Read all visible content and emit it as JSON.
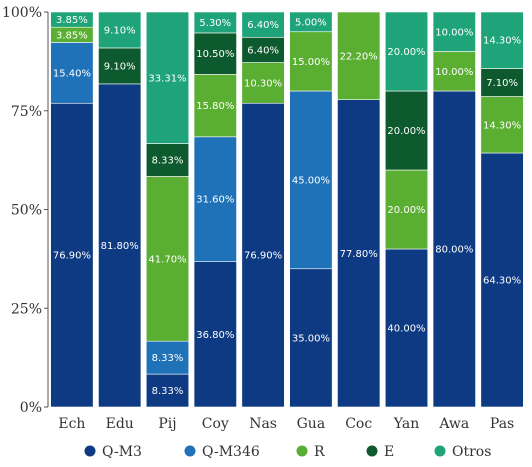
{
  "chart_data": {
    "type": "bar",
    "stacked": true,
    "categories": [
      "Ech",
      "Edu",
      "Pij",
      "Coy",
      "Nas",
      "Gua",
      "Coc",
      "Yan",
      "Awa",
      "Pas"
    ],
    "ylim": [
      0,
      100
    ],
    "yticks": [
      "0%",
      "25%",
      "50%",
      "75%",
      "100%"
    ],
    "ytick_values": [
      0,
      25,
      50,
      75,
      100
    ],
    "grid": false,
    "legend_position": "bottom",
    "series": [
      {
        "name": "Q-M3",
        "color": "#0d3a82",
        "values": [
          76.9,
          81.8,
          8.33,
          36.8,
          76.9,
          35.0,
          77.8,
          40.0,
          80.0,
          64.3
        ],
        "labels": [
          "76.90%",
          "81.80%",
          "8.33%",
          "36.80%",
          "76.90%",
          "35.00%",
          "77.80%",
          "40.00%",
          "80.00%",
          "64.30%"
        ]
      },
      {
        "name": "Q-M346",
        "color": "#1f72b8",
        "values": [
          15.4,
          0,
          8.33,
          31.6,
          0,
          45.0,
          0,
          0,
          0,
          0
        ],
        "labels": [
          "15.40%",
          "",
          "8.33%",
          "31.60%",
          "",
          "45.00%",
          "",
          "",
          "",
          ""
        ]
      },
      {
        "name": "R",
        "color": "#5aae32",
        "values": [
          3.85,
          0,
          41.7,
          15.8,
          10.3,
          15.0,
          22.2,
          20.0,
          10.0,
          14.3
        ],
        "labels": [
          "3.85%",
          "",
          "41.70%",
          "15.80%",
          "10.30%",
          "15.00%",
          "22.20%",
          "20.00%",
          "10.00%",
          "14.30%"
        ]
      },
      {
        "name": "E",
        "color": "#0d5a2e",
        "values": [
          0,
          9.1,
          8.33,
          10.5,
          6.4,
          0,
          0,
          20.0,
          0,
          7.1
        ],
        "labels": [
          "",
          "9.10%",
          "8.33%",
          "10.50%",
          "6.40%",
          "",
          "",
          "20.00%",
          "",
          "7.10%"
        ]
      },
      {
        "name": "Otros",
        "color": "#1fa47a",
        "values": [
          3.85,
          9.1,
          33.31,
          5.3,
          6.4,
          5.0,
          0,
          20.0,
          10.0,
          14.3
        ],
        "labels": [
          "3.85%",
          "9.10%",
          "33.31%",
          "5.30%",
          "6.40%",
          "5.00%",
          "",
          "20.00%",
          "10.00%",
          "14.30%"
        ]
      }
    ]
  }
}
